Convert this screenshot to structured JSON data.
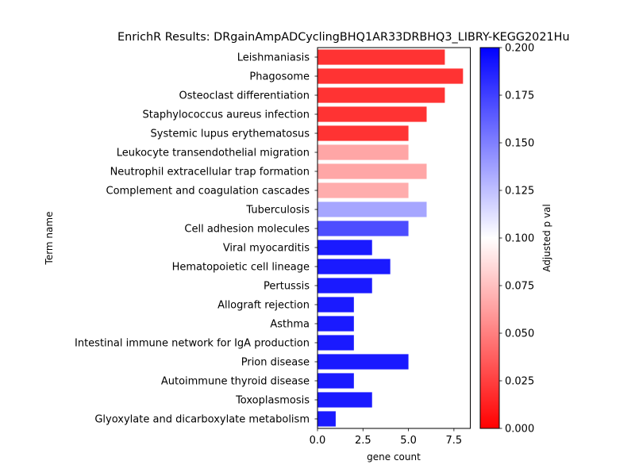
{
  "chart_data": {
    "type": "bar",
    "orientation": "horizontal",
    "title": "EnrichR Results: DRgainAmpADCyclingBHQ1AR33DRBHQ3_LIBRY-KEGG2021Hu",
    "xlabel": "gene count",
    "ylabel": "Term name",
    "xlim": [
      0,
      8.4
    ],
    "xticks": [
      "0.0",
      "2.5",
      "5.0",
      "7.5"
    ],
    "xtick_values": [
      0,
      2.5,
      5,
      7.5
    ],
    "categories": [
      "Leishmaniasis",
      "Phagosome",
      "Osteoclast differentiation",
      "Staphylococcus aureus infection",
      "Systemic lupus erythematosus",
      "Leukocyte transendothelial migration",
      "Neutrophil extracellular trap formation",
      "Complement and coagulation cascades",
      "Tuberculosis",
      "Cell adhesion molecules",
      "Viral myocarditis",
      "Hematopoietic cell lineage",
      "Pertussis",
      "Allograft rejection",
      "Asthma",
      "Intestinal immune network for IgA production",
      "Prion disease",
      "Autoimmune thyroid disease",
      "Toxoplasmosis",
      "Glyoxylate and dicarboxylate metabolism"
    ],
    "values": [
      7,
      8,
      7,
      6,
      5,
      5,
      6,
      5,
      6,
      5,
      3,
      4,
      3,
      2,
      2,
      2,
      5,
      2,
      3,
      1
    ],
    "adjusted_p": [
      0.02,
      0.02,
      0.02,
      0.02,
      0.02,
      0.065,
      0.065,
      0.068,
      0.135,
      0.17,
      0.19,
      0.19,
      0.19,
      0.19,
      0.19,
      0.19,
      0.19,
      0.19,
      0.19,
      0.19
    ],
    "colorbar": {
      "label": "Adjusted p val",
      "range": [
        0,
        0.2
      ],
      "ticks": [
        "0.000",
        "0.025",
        "0.050",
        "0.075",
        "0.100",
        "0.125",
        "0.150",
        "0.175",
        "0.200"
      ],
      "tick_values": [
        0,
        0.025,
        0.05,
        0.075,
        0.1,
        0.125,
        0.15,
        0.175,
        0.2
      ],
      "colormap": "bwr_r",
      "low_color": "#ff0000",
      "mid_color": "#ffffff",
      "high_color": "#0000ff"
    },
    "grid": false
  }
}
